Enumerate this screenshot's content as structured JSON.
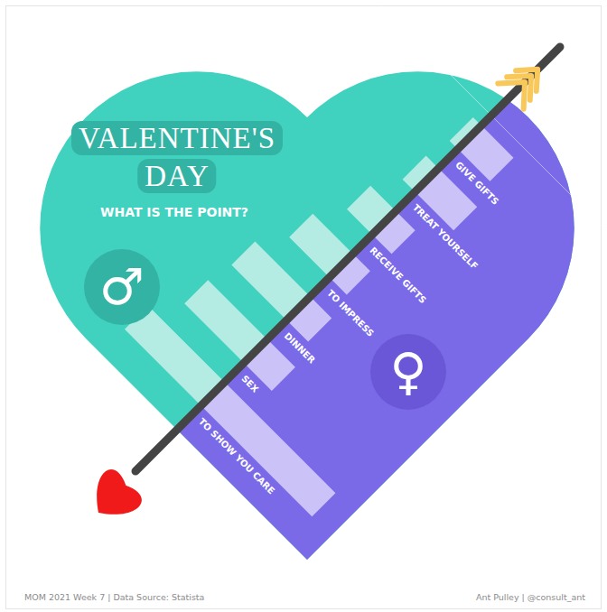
{
  "chart_data": {
    "type": "bar",
    "orientation": "horizontal",
    "title": "VALENTINE'S DAY",
    "subtitle": "WHAT IS THE POINT?",
    "annotations": [
      "MOM 2021 Week 7 | Data Source: Statista",
      "Ant Pulley | @consult_ant"
    ],
    "categories": [
      "TO SHOW YOU CARE",
      "SEX",
      "DINNER",
      "TO IMPRESS",
      "RECEIVE GIFTS",
      "TREAT YOURSELF",
      "GIVE GIFTS"
    ],
    "series": [
      {
        "name": "♂",
        "color": "#b4ece4",
        "values": [
          36,
          28,
          26,
          19,
          12,
          6,
          4
        ]
      },
      {
        "name": "♀",
        "color": "#cbc3f7",
        "values": [
          52,
          13,
          10,
          8,
          9,
          18,
          15
        ]
      }
    ],
    "xlim": [
      0,
      60
    ],
    "tick_labels": false,
    "grid": false
  }
}
